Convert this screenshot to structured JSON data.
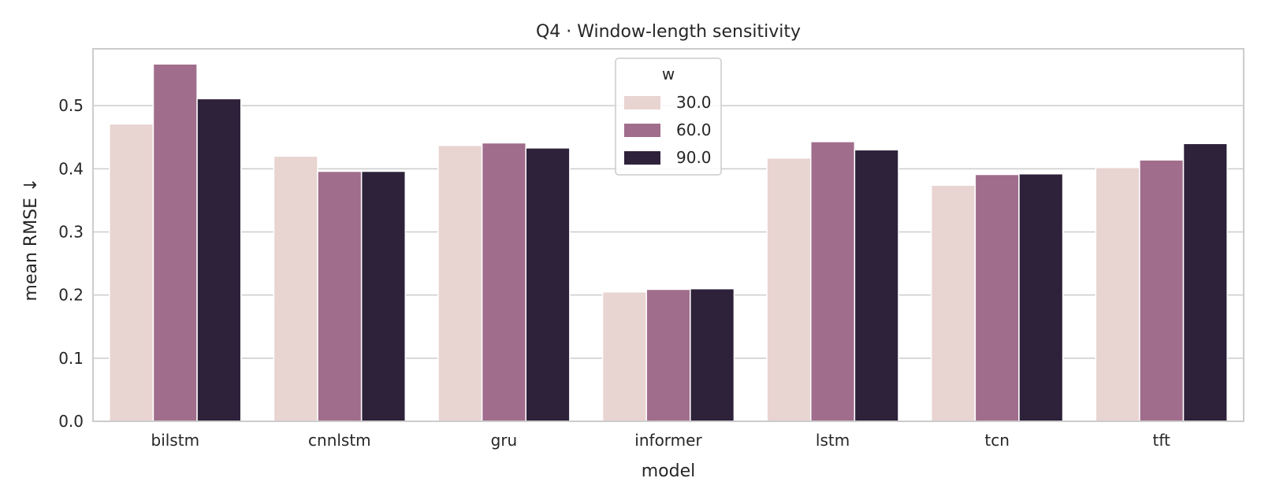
{
  "chart_data": {
    "type": "bar",
    "title": "Q4 · Window-length sensitivity",
    "xlabel": "model",
    "ylabel": "mean RMSE ↓",
    "categories": [
      "bilstm",
      "cnnlstm",
      "gru",
      "informer",
      "lstm",
      "tcn",
      "tft"
    ],
    "series": [
      {
        "name": "30.0",
        "color": "#e8d4d1",
        "values": [
          0.471,
          0.42,
          0.437,
          0.205,
          0.417,
          0.374,
          0.402
        ]
      },
      {
        "name": "60.0",
        "color": "#a06d8c",
        "values": [
          0.566,
          0.396,
          0.441,
          0.209,
          0.443,
          0.391,
          0.414
        ]
      },
      {
        "name": "90.0",
        "color": "#2e213a",
        "values": [
          0.511,
          0.396,
          0.433,
          0.21,
          0.43,
          0.392,
          0.44
        ]
      }
    ],
    "ylim": [
      0,
      0.59
    ],
    "yticks": [
      0.0,
      0.1,
      0.2,
      0.3,
      0.4,
      0.5
    ],
    "ytick_labels": [
      "0.0",
      "0.1",
      "0.2",
      "0.3",
      "0.4",
      "0.5"
    ],
    "grid": true,
    "legend": {
      "title": "w",
      "placement": "upper-center"
    }
  }
}
